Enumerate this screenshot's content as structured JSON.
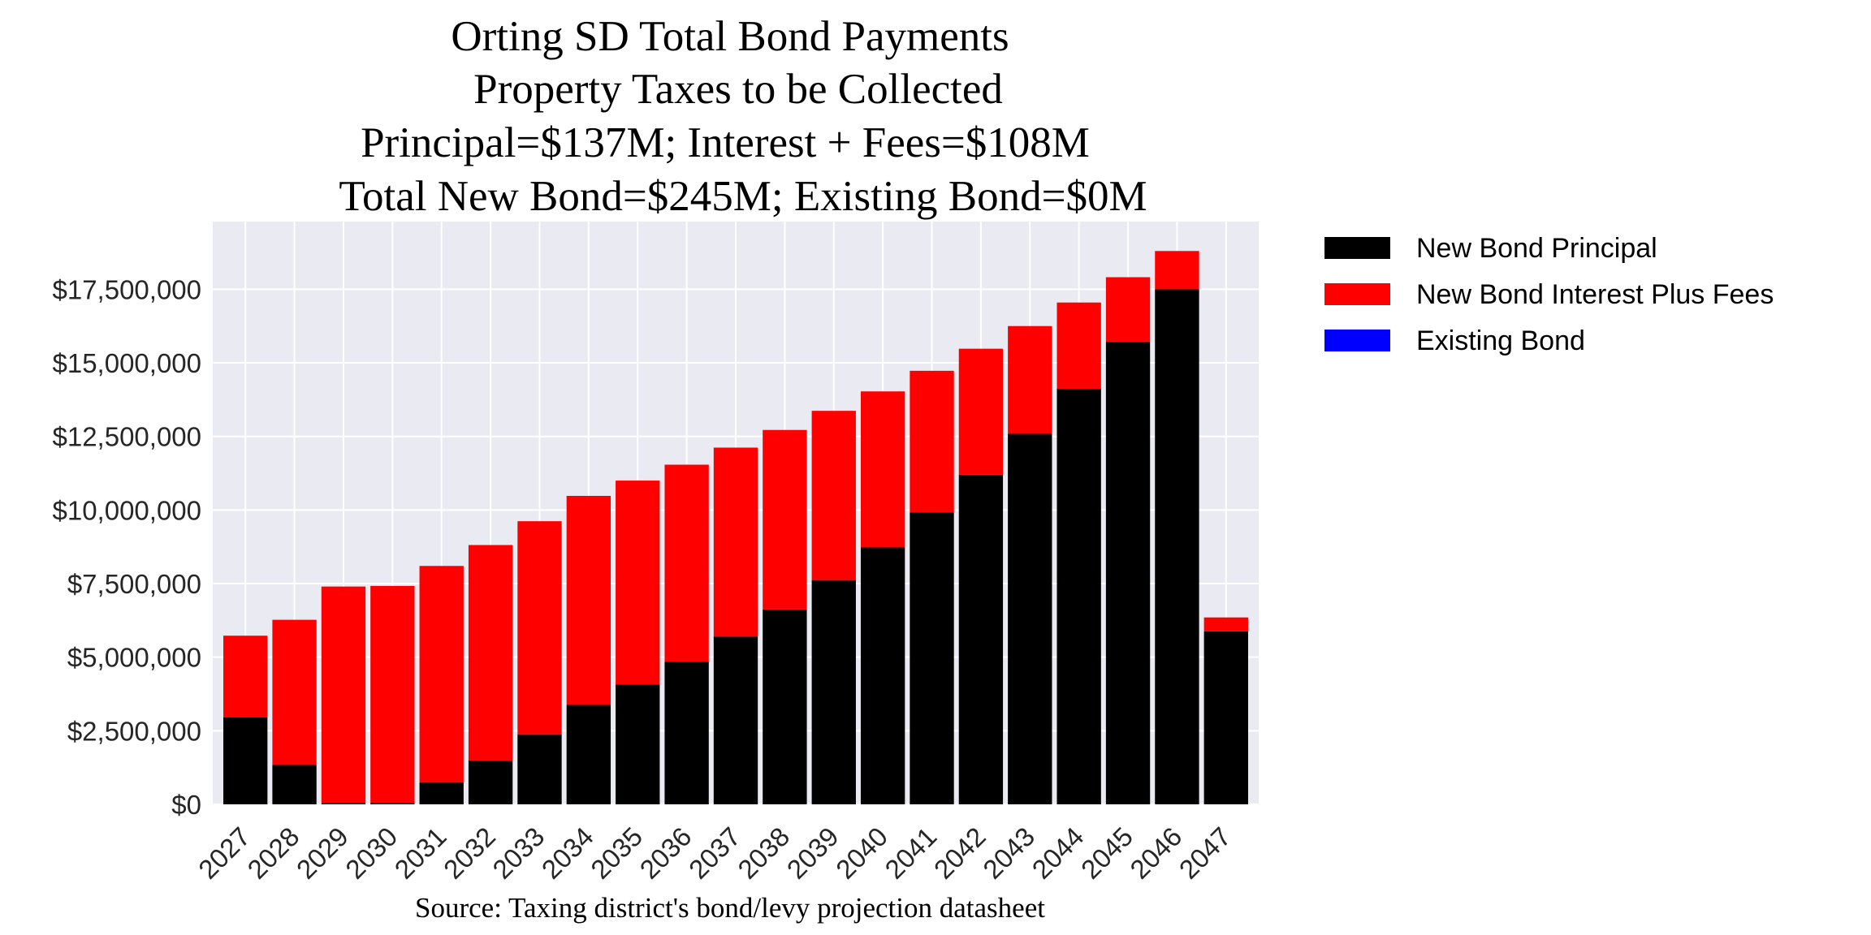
{
  "chart_data": {
    "type": "bar",
    "stacked": true,
    "title_lines": [
      "Orting SD Total Bond Payments",
      "Property Taxes to be Collected",
      "Principal=$137M; Interest + Fees=$108M",
      "Total New Bond=$245M; Existing Bond=$0M"
    ],
    "source": "Source: Taxing district's bond/levy projection datasheet",
    "xlabel": "",
    "ylabel": "",
    "ylim": [
      0,
      19800000
    ],
    "grid": true,
    "legend_placement": "outside-top-right",
    "categories": [
      "2027",
      "2028",
      "2029",
      "2030",
      "2031",
      "2032",
      "2033",
      "2034",
      "2035",
      "2036",
      "2037",
      "2038",
      "2039",
      "2040",
      "2041",
      "2042",
      "2043",
      "2044",
      "2045",
      "2046",
      "2047"
    ],
    "yticks": [
      0,
      2500000,
      5000000,
      7500000,
      10000000,
      12500000,
      15000000,
      17500000
    ],
    "ytick_labels": [
      "$0",
      "$2,500,000",
      "$5,000,000",
      "$7,500,000",
      "$10,000,000",
      "$12,500,000",
      "$15,000,000",
      "$17,500,000"
    ],
    "series": [
      {
        "name": "New Bond Principal",
        "color": "#000000",
        "values": [
          2960000,
          1340000,
          40000,
          40000,
          740000,
          1490000,
          2380000,
          3380000,
          4070000,
          4840000,
          5700000,
          6620000,
          7620000,
          8730000,
          9920000,
          11200000,
          12590000,
          14120000,
          15720000,
          17500000,
          5880000
        ]
      },
      {
        "name": "New Bond Interest Plus Fees",
        "color": "#ff0000",
        "values": [
          2770000,
          4930000,
          7360000,
          7380000,
          7360000,
          7320000,
          7240000,
          7100000,
          6930000,
          6700000,
          6420000,
          6100000,
          5750000,
          5300000,
          4810000,
          4280000,
          3660000,
          2930000,
          2190000,
          1300000,
          470000
        ]
      },
      {
        "name": "Existing Bond",
        "color": "#0000ff",
        "values": [
          0,
          0,
          0,
          0,
          0,
          0,
          0,
          0,
          0,
          0,
          0,
          0,
          0,
          0,
          0,
          0,
          0,
          0,
          0,
          0,
          0
        ]
      }
    ]
  }
}
